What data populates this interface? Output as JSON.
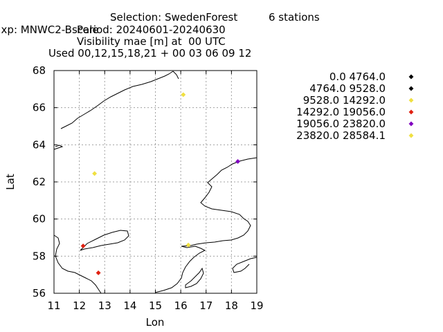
{
  "header": {
    "line1_left": "xp: MNWC2-Bscale",
    "line1_selection": "Selection: SwedenForest",
    "line1_stations": "6 stations",
    "line2": "Period: 20240601-20240630",
    "line3": "Visibility mae [m] at  00 UTC",
    "line4": "Used 00,12,15,18,21 + 00 03 06 09 12"
  },
  "chart_data": {
    "type": "scatter",
    "title": "Visibility mae [m] at  00 UTC",
    "xlabel": "Lon",
    "ylabel": "Lat",
    "xlim": [
      11,
      19
    ],
    "ylim": [
      56,
      68
    ],
    "xticks": [
      "11",
      "12",
      "13",
      "14",
      "15",
      "16",
      "17",
      "18",
      "19"
    ],
    "yticks": [
      "56",
      "58",
      "60",
      "62",
      "64",
      "66",
      "68"
    ],
    "grid": true,
    "legend_position": "right",
    "legend": [
      {
        "label": "0.0 4764.0",
        "color": "#000000"
      },
      {
        "label": "4764.0 9528.0",
        "color": "#000000"
      },
      {
        "label": "9528.0 14292.0",
        "color": "#f0e040"
      },
      {
        "label": "14292.0 19056.0",
        "color": "#e02010"
      },
      {
        "label": "19056.0 23820.0",
        "color": "#8000c0"
      },
      {
        "label": "23820.0 28584.1",
        "color": "#f0e040"
      }
    ],
    "points": [
      {
        "lon": 16.1,
        "lat": 66.7,
        "class": 5
      },
      {
        "lon": 12.6,
        "lat": 62.45,
        "class": 5
      },
      {
        "lon": 18.25,
        "lat": 63.1,
        "class": 4
      },
      {
        "lon": 16.3,
        "lat": 58.6,
        "class": 2
      },
      {
        "lon": 12.15,
        "lat": 58.55,
        "class": 3
      },
      {
        "lon": 12.75,
        "lat": 57.1,
        "class": 3
      }
    ]
  }
}
